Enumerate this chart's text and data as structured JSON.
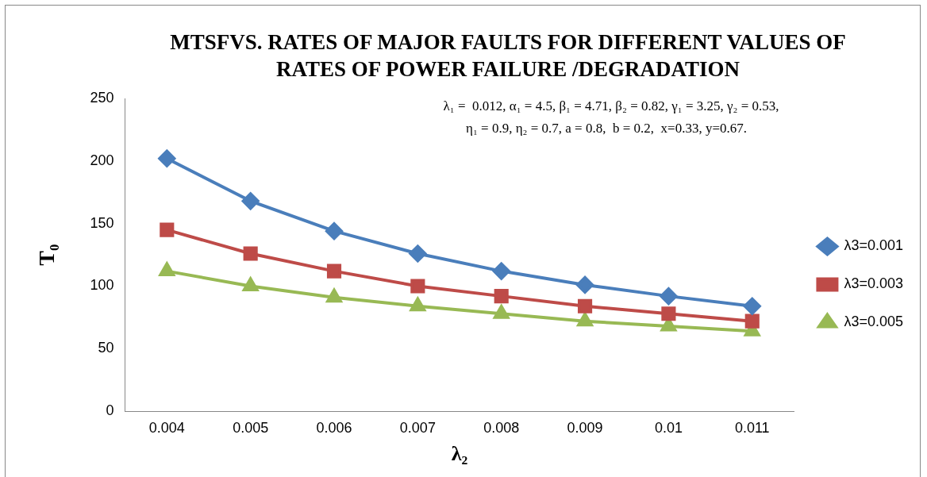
{
  "chart_data": {
    "type": "line",
    "title": "MTSFVS. RATES OF MAJOR FAULTS FOR DIFFERENT VALUES OF RATES OF POWER FAILURE /DEGRADATION",
    "xlabel": "λ₂",
    "ylabel": "T₀",
    "categories": [
      "0.004",
      "0.005",
      "0.006",
      "0.007",
      "0.008",
      "0.009",
      "0.01",
      "0.011"
    ],
    "series": [
      {
        "name": "λ3=0.001",
        "color": "#4a7ebb",
        "marker": "diamond",
        "values": [
          202,
          168,
          144,
          126,
          112,
          101,
          92,
          84
        ]
      },
      {
        "name": "λ3=0.003",
        "color": "#be4b48",
        "marker": "square",
        "values": [
          145,
          126,
          112,
          100,
          92,
          84,
          78,
          72
        ]
      },
      {
        "name": "λ3=0.005",
        "color": "#98b954",
        "marker": "triangle",
        "values": [
          112,
          100,
          91,
          84,
          78,
          72,
          68,
          64
        ]
      }
    ],
    "ylim": [
      0,
      250
    ],
    "yticks": [
      0,
      50,
      100,
      150,
      200,
      250
    ],
    "grid": false,
    "legend": "right",
    "line_style": "solid",
    "annotations": [
      "λ₁ =  0.012, α₁ = 4.5, β₁ = 4.71, β₂ = 0.82, γ₁ = 3.25, γ₂ = 0.53,",
      "η₁ = 0.9, η₂ = 0.7, a = 0.8,  b = 0.2,  x=0.33, y=0.67."
    ]
  }
}
